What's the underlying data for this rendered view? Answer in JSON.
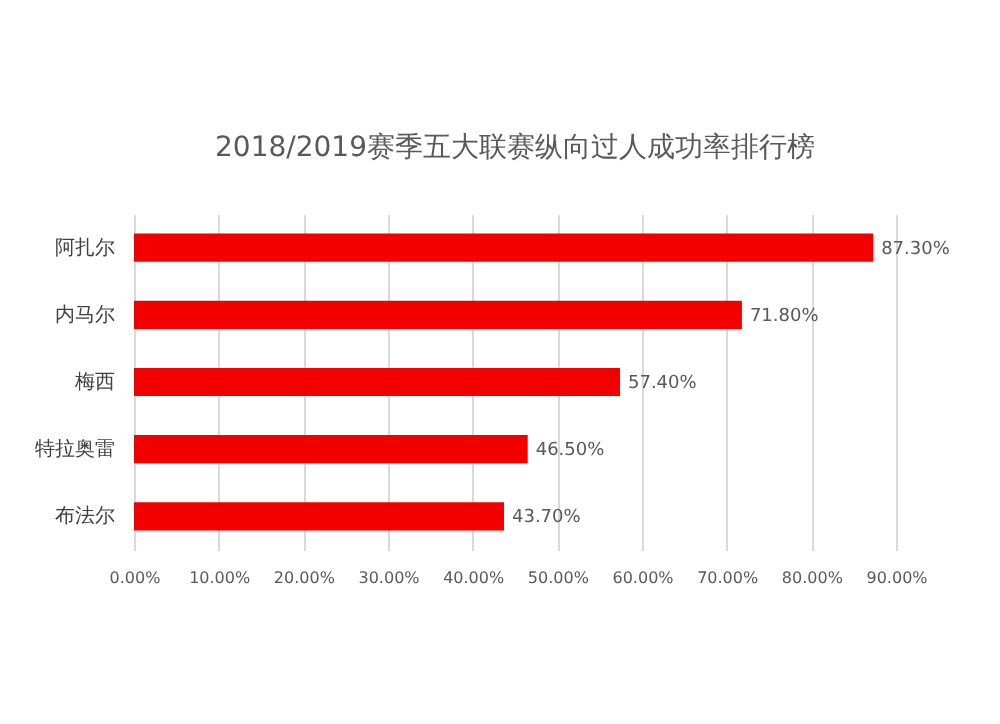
{
  "chart_data": {
    "type": "bar",
    "orientation": "horizontal",
    "title": "2018/2019赛季五大联赛纵向过人成功率排行榜",
    "categories": [
      "阿扎尔",
      "内马尔",
      "梅西",
      "特拉奥雷",
      "布法尔"
    ],
    "values": [
      87.3,
      71.8,
      57.4,
      46.5,
      43.7
    ],
    "value_labels": [
      "87.30%",
      "71.80%",
      "57.40%",
      "46.50%",
      "43.70%"
    ],
    "color": "#f20000",
    "xlim": [
      0,
      90
    ],
    "xticks": [
      {
        "value": 0,
        "label": "0.00%"
      },
      {
        "value": 10,
        "label": "10.00%"
      },
      {
        "value": 20,
        "label": "20.00%"
      },
      {
        "value": 30,
        "label": "30.00%"
      },
      {
        "value": 40,
        "label": "40.00%"
      },
      {
        "value": 50,
        "label": "50.00%"
      },
      {
        "value": 60,
        "label": "60.00%"
      },
      {
        "value": 70,
        "label": "70.00%"
      },
      {
        "value": 80,
        "label": "80.00%"
      },
      {
        "value": 90,
        "label": "90.00%"
      }
    ],
    "grid": "x"
  }
}
